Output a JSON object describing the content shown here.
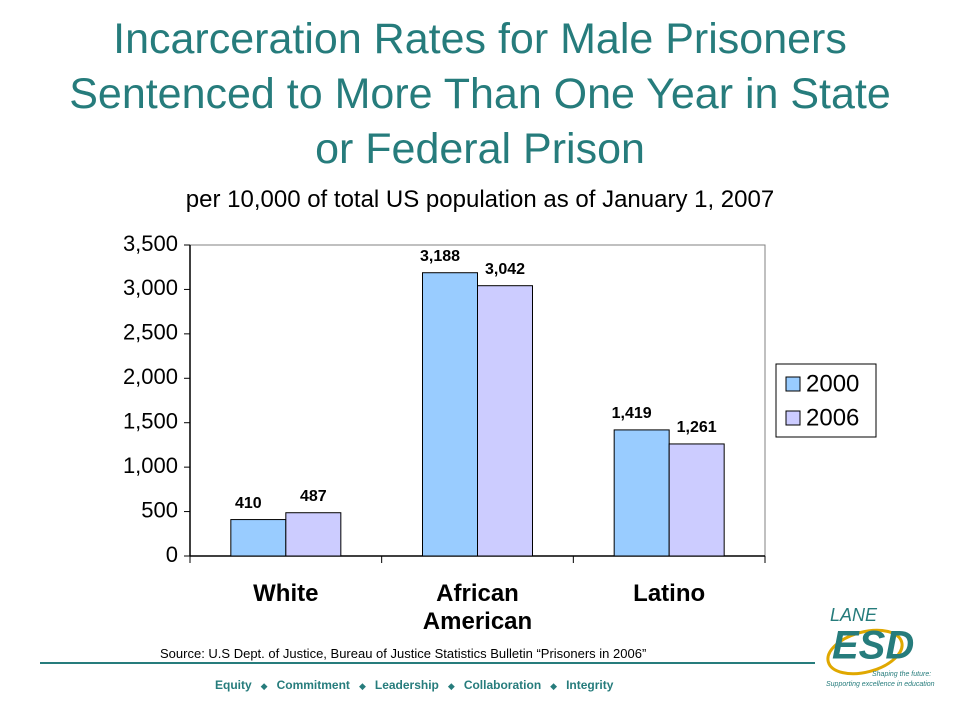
{
  "chart_data": {
    "type": "bar",
    "title": "Incarceration Rates for Male Prisoners Sentenced to More Than One Year in State or Federal Prison",
    "subtitle": "per 10,000 of total US population as of January 1, 2007",
    "categories": [
      "White",
      "African American",
      "Latino"
    ],
    "series": [
      {
        "name": "2000",
        "color": "#99ccff",
        "values": [
          410,
          3188,
          1419
        ],
        "value_labels": [
          "410",
          "3,188",
          "1,419"
        ]
      },
      {
        "name": "2006",
        "color": "#ccccff",
        "values": [
          487,
          3042,
          1261
        ],
        "value_labels": [
          "487",
          "3,042",
          "1,261"
        ]
      }
    ],
    "ylim": [
      0,
      3500
    ],
    "yticks": [
      0,
      500,
      {
        "value": 1000,
        "label": "1,000"
      },
      {
        "value": 1500,
        "label": "1,500"
      },
      {
        "value": 2000,
        "label": "2,000"
      },
      {
        "value": 2500,
        "label": "2,500"
      },
      {
        "value": 3000,
        "label": "3,000"
      },
      {
        "value": 3500,
        "label": "3,500"
      }
    ],
    "grid": false,
    "legend": "right",
    "source": "Source: U.S Dept. of Justice, Bureau  of Justice Statistics Bulletin “Prisoners in 2006”"
  },
  "footer": [
    "Equity",
    "Commitment",
    "Leadership",
    "Collaboration",
    "Integrity"
  ],
  "logo": {
    "name": "LANE",
    "mark": "ESD",
    "tagline": "Shaping the future:",
    "motto": "Supporting excellence in education"
  }
}
